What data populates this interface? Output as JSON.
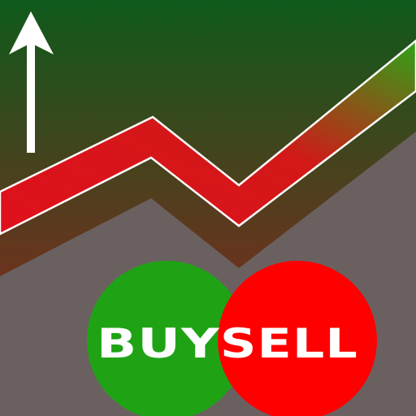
{
  "colors": {
    "background_top": "#0f5a1c",
    "background_bottom": "#9a1f1f",
    "lower_area": "#6b6060",
    "band_low": "#e0101c",
    "band_high": "#2ea318",
    "band_outline": "#ffffff",
    "arrow": "#ffffff",
    "buy_circle": "#1fa315",
    "sell_circle": "#ff0000",
    "label_text": "#ffffff"
  },
  "icons": {
    "up_arrow": "up-arrow-icon",
    "trend_band": "trend-line-icon"
  },
  "buttons": {
    "buy_label": "BUY",
    "sell_label": "SELL"
  }
}
